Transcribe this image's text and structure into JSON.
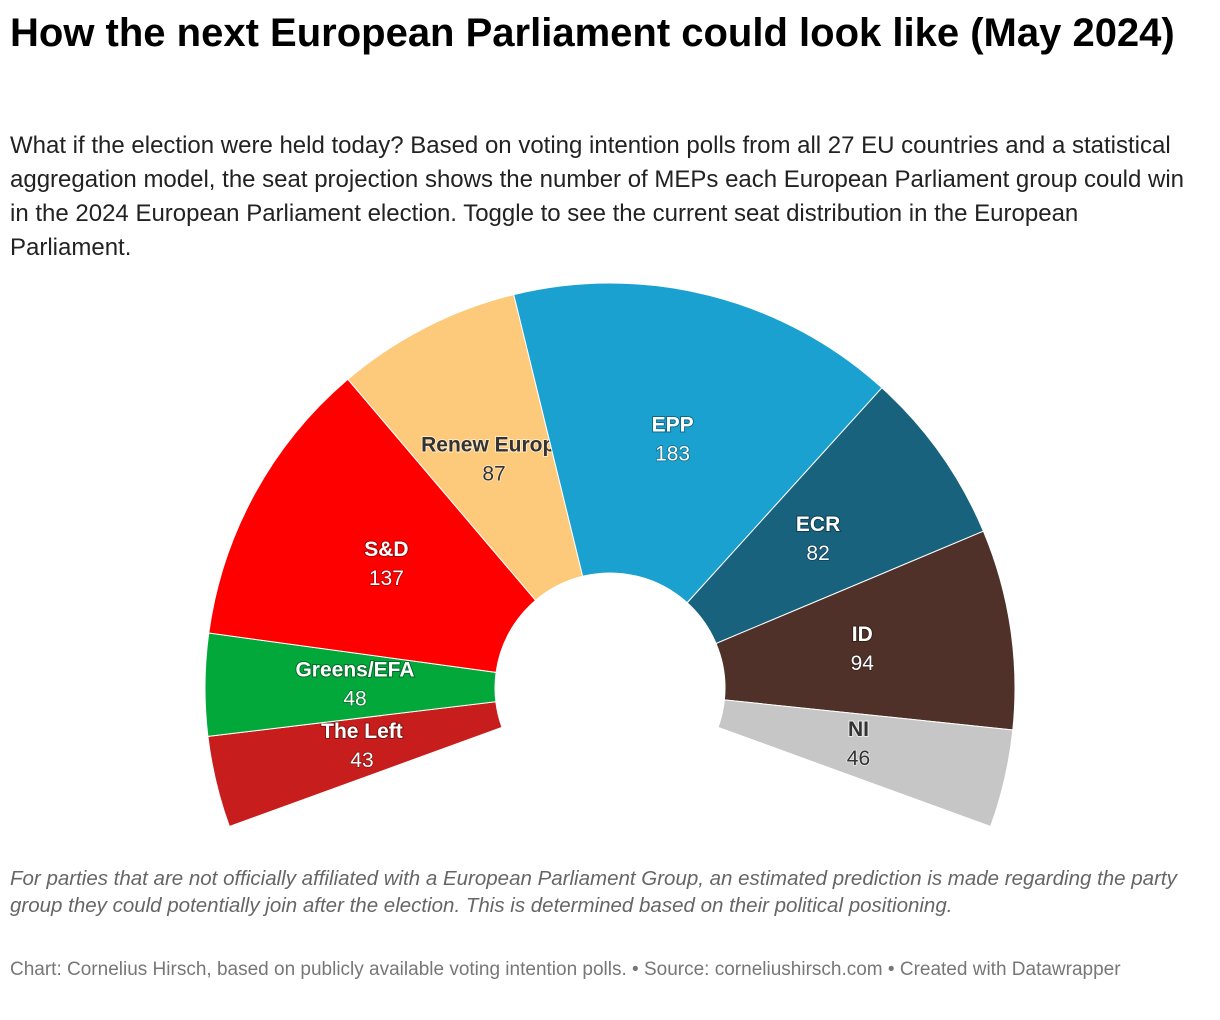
{
  "chart_data": {
    "type": "pie",
    "title": "How the next European Parliament could look like (May 2024)",
    "subtitle": "What if the election were held today? Based on voting intention polls from all 27 EU countries and a statistical aggregation model, the seat projection shows the number of MEPs each European Parliament group could win in the 2024 European Parliament election. Toggle to see the current seat distribution in the European Parliament.",
    "categories": [
      "The Left",
      "Greens/EFA",
      "S&D",
      "Renew Europe",
      "EPP",
      "ECR",
      "ID",
      "NI"
    ],
    "values": [
      43,
      48,
      137,
      87,
      183,
      82,
      94,
      46
    ],
    "colors": [
      "#c71e1d",
      "#03a83b",
      "#ff0000",
      "#fdca7b",
      "#1aa1cf",
      "#18627e",
      "#4f3129",
      "#c6c6c6"
    ],
    "notes": "For parties that are not officially affiliated with a European Parliament Group, an estimated prediction is made regarding the party group they could potentially join after the election. This is determined based on their political positioning.",
    "footer": "Chart: Cornelius Hirsch, based on publicly available voting intention polls. • Source: corneliushirsch.com • Created with Datawrapper"
  }
}
